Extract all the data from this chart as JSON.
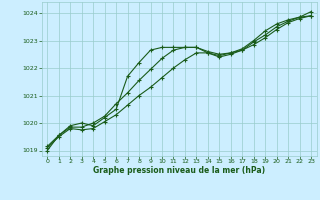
{
  "title": "Graphe pression niveau de la mer (hPa)",
  "bg_color": "#cceeff",
  "plot_bg_color": "#cceeff",
  "grid_color": "#99cccc",
  "line_color": "#1a5c1a",
  "xlim": [
    -0.5,
    23.5
  ],
  "ylim": [
    1018.8,
    1024.4
  ],
  "yticks": [
    1019,
    1020,
    1021,
    1022,
    1023,
    1024
  ],
  "xticks": [
    0,
    1,
    2,
    3,
    4,
    5,
    6,
    7,
    8,
    9,
    10,
    11,
    12,
    13,
    14,
    15,
    16,
    17,
    18,
    19,
    20,
    21,
    22,
    23
  ],
  "line1_x": [
    0,
    1,
    2,
    3,
    4,
    5,
    6,
    7,
    8,
    9,
    10,
    11,
    12,
    13,
    14,
    15,
    16,
    17,
    18,
    19,
    20,
    21,
    22,
    23
  ],
  "line1_y": [
    1019.0,
    1019.55,
    1019.9,
    1020.0,
    1019.9,
    1020.2,
    1020.5,
    1021.7,
    1022.2,
    1022.65,
    1022.75,
    1022.75,
    1022.75,
    1022.75,
    1022.6,
    1022.5,
    1022.55,
    1022.65,
    1022.85,
    1023.1,
    1023.4,
    1023.65,
    1023.8,
    1023.9
  ],
  "line2_x": [
    0,
    1,
    2,
    3,
    4,
    5,
    6,
    7,
    8,
    9,
    10,
    11,
    12,
    13,
    14,
    15,
    16,
    17,
    18,
    19,
    20,
    21,
    22,
    23
  ],
  "line2_y": [
    1019.15,
    1019.55,
    1019.85,
    1019.85,
    1020.0,
    1020.25,
    1020.7,
    1021.1,
    1021.55,
    1021.95,
    1022.35,
    1022.65,
    1022.75,
    1022.75,
    1022.55,
    1022.4,
    1022.5,
    1022.65,
    1022.95,
    1023.2,
    1023.5,
    1023.7,
    1023.85,
    1023.9
  ],
  "line3_x": [
    0,
    1,
    2,
    3,
    4,
    5,
    6,
    7,
    8,
    9,
    10,
    11,
    12,
    13,
    14,
    15,
    16,
    17,
    18,
    19,
    20,
    21,
    22,
    23
  ],
  "line3_y": [
    1019.1,
    1019.5,
    1019.8,
    1019.75,
    1019.8,
    1020.05,
    1020.3,
    1020.65,
    1021.0,
    1021.3,
    1021.65,
    1022.0,
    1022.3,
    1022.55,
    1022.55,
    1022.45,
    1022.55,
    1022.7,
    1023.0,
    1023.35,
    1023.6,
    1023.75,
    1023.85,
    1024.05
  ]
}
